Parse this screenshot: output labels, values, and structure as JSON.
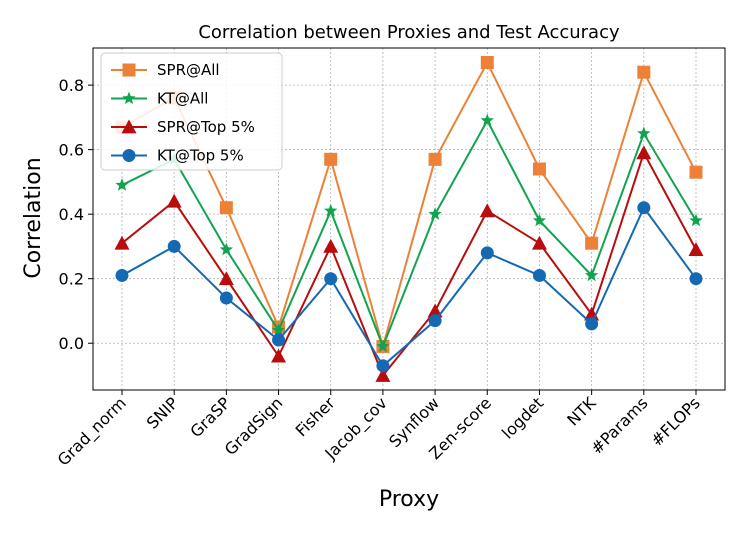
{
  "chart_data": {
    "type": "line",
    "title": "Correlation between Proxies and Test Accuracy",
    "xlabel": "Proxy",
    "ylabel": "Correlation",
    "ylim": [
      -0.145,
      0.915
    ],
    "yticks": [
      0.0,
      0.2,
      0.4,
      0.6,
      0.8
    ],
    "ytick_labels": [
      "0.0",
      "0.2",
      "0.4",
      "0.6",
      "0.8"
    ],
    "grid": true,
    "legend_position": "top-left",
    "categories": [
      "Grad_norm",
      "SNIP",
      "GraSP",
      "GradSign",
      "Fisher",
      "Jacob_cov",
      "Synflow",
      "Zen-score",
      "logdet",
      "NTK",
      "#Params",
      "#FLOPs"
    ],
    "series": [
      {
        "name": "SPR@All",
        "color": "#ED8137",
        "marker": "square",
        "values": [
          0.67,
          0.76,
          0.42,
          0.05,
          0.57,
          -0.01,
          0.57,
          0.87,
          0.54,
          0.31,
          0.84,
          0.53
        ]
      },
      {
        "name": "KT@All",
        "color": "#10A44F",
        "marker": "star",
        "values": [
          0.49,
          0.57,
          0.29,
          0.04,
          0.41,
          -0.01,
          0.4,
          0.69,
          0.38,
          0.21,
          0.65,
          0.38
        ]
      },
      {
        "name": "SPR@Top 5%",
        "color": "#B90D0D",
        "marker": "triangle",
        "values": [
          0.31,
          0.44,
          0.2,
          -0.04,
          0.3,
          -0.1,
          0.1,
          0.41,
          0.31,
          0.09,
          0.59,
          0.29
        ]
      },
      {
        "name": "KT@Top 5%",
        "color": "#1569B3",
        "marker": "circle",
        "values": [
          0.21,
          0.3,
          0.14,
          0.01,
          0.2,
          -0.07,
          0.07,
          0.28,
          0.21,
          0.06,
          0.42,
          0.2
        ]
      }
    ]
  }
}
